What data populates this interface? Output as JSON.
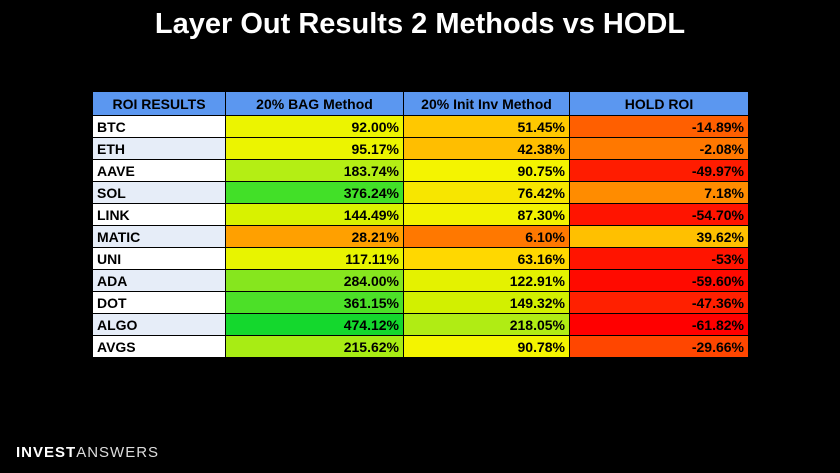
{
  "title": "Layer Out Results 2 Methods vs HODL",
  "table": {
    "headers": [
      "ROI RESULTS",
      "20% BAG Method",
      "20% Init Inv Method",
      "HOLD ROI"
    ],
    "rows": [
      {
        "asset": "BTC",
        "bag": "92.00%",
        "init": "51.45%",
        "hold": "-14.89%",
        "bag_color": "#ecf400",
        "init_color": "#ffc800",
        "hold_color": "#ff5f00"
      },
      {
        "asset": "ETH",
        "bag": "95.17%",
        "init": "42.38%",
        "hold": "-2.08%",
        "bag_color": "#ecf400",
        "init_color": "#ffbe00",
        "hold_color": "#ff7800"
      },
      {
        "asset": "AAVE",
        "bag": "183.74%",
        "init": "90.75%",
        "hold": "-49.97%",
        "bag_color": "#b4ee14",
        "init_color": "#f4f400",
        "hold_color": "#ff1c00"
      },
      {
        "asset": "SOL",
        "bag": "376.24%",
        "init": "76.42%",
        "hold": "7.18%",
        "bag_color": "#42e028",
        "init_color": "#f7e600",
        "hold_color": "#ff8c00"
      },
      {
        "asset": "LINK",
        "bag": "144.49%",
        "init": "87.30%",
        "hold": "-54.70%",
        "bag_color": "#d8f200",
        "init_color": "#f2f200",
        "hold_color": "#ff1400"
      },
      {
        "asset": "MATIC",
        "bag": "28.21%",
        "init": "6.10%",
        "hold": "39.62%",
        "bag_color": "#ffa000",
        "init_color": "#ff7800",
        "hold_color": "#ffc000"
      },
      {
        "asset": "UNI",
        "bag": "117.11%",
        "init": "63.16%",
        "hold": "-53%",
        "bag_color": "#e8f400",
        "init_color": "#ffd800",
        "hold_color": "#ff1400"
      },
      {
        "asset": "ADA",
        "bag": "284.00%",
        "init": "122.91%",
        "hold": "-59.60%",
        "bag_color": "#86e61e",
        "init_color": "#e4f200",
        "hold_color": "#ff0a00"
      },
      {
        "asset": "DOT",
        "bag": "361.15%",
        "init": "149.32%",
        "hold": "-47.36%",
        "bag_color": "#4ce028",
        "init_color": "#d2f000",
        "hold_color": "#ff2000"
      },
      {
        "asset": "ALGO",
        "bag": "474.12%",
        "init": "218.05%",
        "hold": "-61.82%",
        "bag_color": "#14d82d",
        "init_color": "#b0ec14",
        "hold_color": "#ff0000"
      },
      {
        "asset": "AVGS",
        "bag": "215.62%",
        "init": "90.78%",
        "hold": "-29.66%",
        "bag_color": "#a8ec14",
        "init_color": "#f4f400",
        "hold_color": "#ff4600"
      }
    ]
  },
  "footer": {
    "brand_bold": "INVEST",
    "brand_light": "ANSWERS"
  }
}
